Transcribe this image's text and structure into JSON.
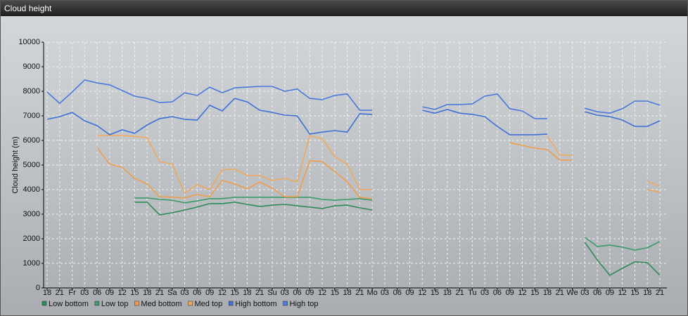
{
  "chart_data": {
    "type": "line",
    "title": "Cloud height",
    "y_label": "Cloud height (m)",
    "categories": [
      "18",
      "21",
      "Fr",
      "03",
      "06",
      "09",
      "12",
      "15",
      "18",
      "21",
      "Sa",
      "03",
      "06",
      "09",
      "12",
      "15",
      "18",
      "21",
      "Su",
      "03",
      "06",
      "09",
      "12",
      "15",
      "18",
      "21",
      "Mo",
      "03",
      "06",
      "09",
      "12",
      "15",
      "18",
      "21",
      "Tu",
      "03",
      "06",
      "09",
      "12",
      "15",
      "18",
      "21",
      "We",
      "03",
      "06",
      "09",
      "12",
      "15",
      "18",
      "21"
    ],
    "ylim": [
      0,
      10000
    ],
    "yticks": [
      0,
      1000,
      2000,
      3000,
      4000,
      5000,
      6000,
      7000,
      8000,
      9000,
      10000
    ],
    "grid": true,
    "series": [
      {
        "name": "Low bottom",
        "color": "#2e8b57",
        "values": [
          null,
          null,
          null,
          null,
          null,
          null,
          null,
          3490,
          3490,
          2970,
          3060,
          3170,
          3290,
          3430,
          3430,
          3490,
          3400,
          3310,
          3370,
          3400,
          3340,
          3290,
          3230,
          3340,
          3370,
          3260,
          3170,
          null,
          null,
          null,
          null,
          null,
          null,
          null,
          null,
          null,
          null,
          null,
          null,
          null,
          null,
          null,
          null,
          1860,
          1140,
          510,
          800,
          1060,
          1030,
          510
        ]
      },
      {
        "name": "Low top",
        "color": "#3a9a68",
        "values": [
          null,
          null,
          null,
          null,
          null,
          null,
          null,
          3660,
          3660,
          3600,
          3570,
          3460,
          3540,
          3630,
          3630,
          3690,
          3690,
          3690,
          3690,
          3690,
          3690,
          3690,
          3600,
          3570,
          3600,
          3630,
          3570,
          null,
          null,
          null,
          null,
          null,
          null,
          null,
          null,
          null,
          null,
          null,
          null,
          null,
          null,
          null,
          null,
          2060,
          1690,
          1740,
          1660,
          1540,
          1630,
          1890
        ]
      },
      {
        "name": "Med bottom",
        "color": "#ef9d4a",
        "values": [
          null,
          null,
          null,
          null,
          5710,
          5030,
          4910,
          4460,
          4230,
          3710,
          3690,
          3660,
          3800,
          3710,
          4370,
          4230,
          4030,
          4310,
          4060,
          3710,
          3710,
          5170,
          5140,
          4740,
          4310,
          3690,
          3630,
          null,
          null,
          null,
          null,
          null,
          null,
          null,
          null,
          null,
          null,
          5910,
          5800,
          5690,
          5630,
          5200,
          5200,
          null,
          null,
          null,
          null,
          null,
          4000,
          3890
        ]
      },
      {
        "name": "Med top",
        "color": "#f2a85c",
        "values": [
          null,
          null,
          null,
          null,
          6200,
          6200,
          6200,
          6170,
          6110,
          5140,
          5030,
          3860,
          4200,
          4000,
          4800,
          4830,
          4570,
          4570,
          4370,
          4460,
          4310,
          6200,
          6060,
          5340,
          5030,
          4000,
          4000,
          null,
          null,
          null,
          null,
          null,
          null,
          null,
          null,
          null,
          null,
          null,
          null,
          null,
          6200,
          5400,
          5400,
          null,
          null,
          null,
          null,
          null,
          4340,
          4140
        ]
      },
      {
        "name": "High bottom",
        "color": "#3d6fd6",
        "values": [
          6860,
          6970,
          7140,
          6800,
          6600,
          6230,
          6430,
          6290,
          6630,
          6890,
          6970,
          6860,
          6830,
          7430,
          7200,
          7710,
          7570,
          7230,
          7140,
          7030,
          7000,
          6260,
          6340,
          6400,
          6340,
          7090,
          7060,
          null,
          null,
          null,
          7230,
          7110,
          7260,
          7110,
          7060,
          6970,
          6570,
          6230,
          6230,
          6230,
          6260,
          null,
          null,
          7170,
          7030,
          6970,
          6830,
          6570,
          6570,
          6800
        ]
      },
      {
        "name": "High top",
        "color": "#4a78dc",
        "values": [
          7970,
          7510,
          7970,
          8460,
          8340,
          8260,
          8030,
          7800,
          7710,
          7540,
          7570,
          7940,
          7830,
          8170,
          7940,
          8140,
          8170,
          8200,
          8200,
          8000,
          8090,
          7710,
          7660,
          7830,
          7890,
          7230,
          7230,
          null,
          null,
          null,
          7370,
          7260,
          7460,
          7460,
          7490,
          7800,
          7890,
          7290,
          7200,
          6890,
          6890,
          null,
          null,
          7310,
          7170,
          7110,
          7290,
          7600,
          7600,
          7430
        ]
      }
    ]
  }
}
